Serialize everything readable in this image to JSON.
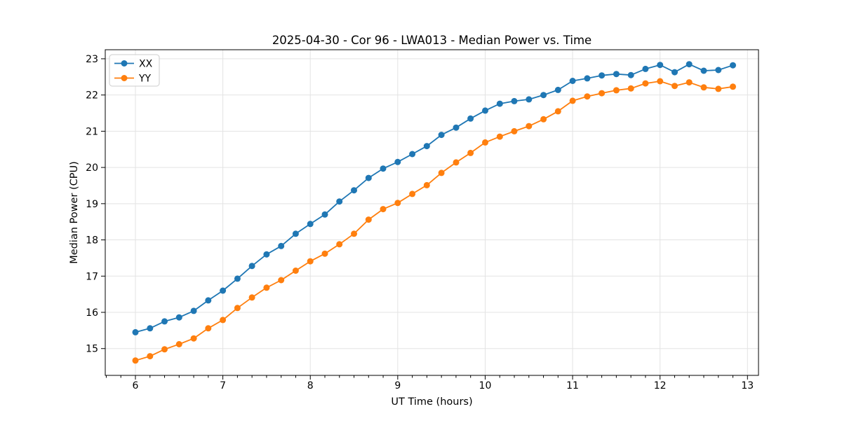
{
  "chart_data": {
    "type": "line",
    "title": "2025-04-30 - Cor 96 - LWA013 - Median Power vs. Time",
    "xlabel": "UT Time (hours)",
    "ylabel": "Median Power (CPU)",
    "grid": true,
    "legend_position": "upper left",
    "xlim": [
      5.655,
      13.126
    ],
    "ylim": [
      14.26,
      23.25
    ],
    "xticks": [
      6,
      7,
      8,
      9,
      10,
      11,
      12,
      13
    ],
    "yticks": [
      15,
      16,
      17,
      18,
      19,
      20,
      21,
      22,
      23
    ],
    "x_minor_per_hour": 6,
    "x": [
      6.0,
      6.167,
      6.333,
      6.5,
      6.667,
      6.833,
      7.0,
      7.167,
      7.333,
      7.5,
      7.667,
      7.833,
      8.0,
      8.167,
      8.333,
      8.5,
      8.667,
      8.833,
      9.0,
      9.167,
      9.333,
      9.5,
      9.667,
      9.833,
      10.0,
      10.167,
      10.333,
      10.5,
      10.667,
      10.833,
      11.0,
      11.167,
      11.333,
      11.5,
      11.667,
      11.833,
      12.0,
      12.167,
      12.333,
      12.5,
      12.667,
      12.833
    ],
    "series": [
      {
        "name": "XX",
        "color": "#1f77b4",
        "values": [
          15.45,
          15.56,
          15.75,
          15.86,
          16.04,
          16.33,
          16.6,
          16.93,
          17.28,
          17.6,
          17.83,
          18.17,
          18.44,
          18.7,
          19.06,
          19.37,
          19.71,
          19.97,
          20.15,
          20.37,
          20.59,
          20.9,
          21.1,
          21.35,
          21.57,
          21.76,
          21.83,
          21.88,
          22.0,
          22.14,
          22.39,
          22.46,
          22.54,
          22.58,
          22.55,
          22.72,
          22.83,
          22.63,
          22.85,
          22.67,
          22.69,
          22.82
        ]
      },
      {
        "name": "YY",
        "color": "#ff7f0e",
        "values": [
          14.67,
          14.79,
          14.98,
          15.12,
          15.28,
          15.56,
          15.79,
          16.12,
          16.41,
          16.68,
          16.89,
          17.15,
          17.41,
          17.62,
          17.88,
          18.17,
          18.56,
          18.85,
          19.02,
          19.27,
          19.51,
          19.85,
          20.14,
          20.4,
          20.69,
          20.85,
          21.0,
          21.14,
          21.33,
          21.55,
          21.84,
          21.96,
          22.05,
          22.13,
          22.18,
          22.32,
          22.38,
          22.25,
          22.35,
          22.21,
          22.17,
          22.23
        ]
      }
    ],
    "style": {
      "grid_color": "#e3e3e3",
      "spine_color": "#000000",
      "tick_color": "#000000",
      "legend_border_color": "#cccccc",
      "legend_background": "#ffffff"
    }
  }
}
